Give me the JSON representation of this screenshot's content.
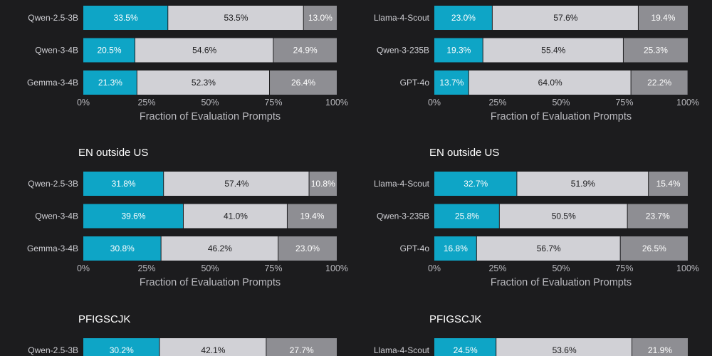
{
  "colors": {
    "background": "#1c1c1e",
    "series": [
      "#0ea5c6",
      "#d1d1d6",
      "#8e8e93"
    ],
    "label_on_series": [
      "#ffffff",
      "#1c1c1e",
      "#ffffff"
    ]
  },
  "chart_data": [
    {
      "type": "bar",
      "stacked": true,
      "orientation": "horizontal",
      "title": "",
      "categories": [
        "Qwen-2.5-3B",
        "Qwen-3-4B",
        "Gemma-3-4B"
      ],
      "series": [
        {
          "values": [
            33.5,
            20.5,
            21.3
          ]
        },
        {
          "values": [
            53.5,
            54.6,
            52.3
          ]
        },
        {
          "values": [
            13.0,
            24.9,
            26.4
          ]
        }
      ],
      "xlabel": "Fraction of Evaluation Prompts",
      "xlim": [
        0,
        100
      ],
      "xticks": [
        "0%",
        "25%",
        "50%",
        "75%",
        "100%"
      ]
    },
    {
      "type": "bar",
      "stacked": true,
      "orientation": "horizontal",
      "title": "",
      "categories": [
        "Llama-4-Scout",
        "Qwen-3-235B",
        "GPT-4o"
      ],
      "series": [
        {
          "values": [
            23.0,
            19.3,
            13.7
          ]
        },
        {
          "values": [
            57.6,
            55.4,
            64.0
          ]
        },
        {
          "values": [
            19.4,
            25.3,
            22.2
          ]
        }
      ],
      "xlabel": "Fraction of Evaluation Prompts",
      "xlim": [
        0,
        100
      ],
      "xticks": [
        "0%",
        "25%",
        "50%",
        "75%",
        "100%"
      ]
    },
    {
      "type": "bar",
      "stacked": true,
      "orientation": "horizontal",
      "title": "EN outside US",
      "categories": [
        "Qwen-2.5-3B",
        "Qwen-3-4B",
        "Gemma-3-4B"
      ],
      "series": [
        {
          "values": [
            31.8,
            39.6,
            30.8
          ]
        },
        {
          "values": [
            57.4,
            41.0,
            46.2
          ]
        },
        {
          "values": [
            10.8,
            19.4,
            23.0
          ]
        }
      ],
      "xlabel": "Fraction of Evaluation Prompts",
      "xlim": [
        0,
        100
      ],
      "xticks": [
        "0%",
        "25%",
        "50%",
        "75%",
        "100%"
      ]
    },
    {
      "type": "bar",
      "stacked": true,
      "orientation": "horizontal",
      "title": "EN outside US",
      "categories": [
        "Llama-4-Scout",
        "Qwen-3-235B",
        "GPT-4o"
      ],
      "series": [
        {
          "values": [
            32.7,
            25.8,
            16.8
          ]
        },
        {
          "values": [
            51.9,
            50.5,
            56.7
          ]
        },
        {
          "values": [
            15.4,
            23.7,
            26.5
          ]
        }
      ],
      "xlabel": "Fraction of Evaluation Prompts",
      "xlim": [
        0,
        100
      ],
      "xticks": [
        "0%",
        "25%",
        "50%",
        "75%",
        "100%"
      ]
    },
    {
      "type": "bar",
      "stacked": true,
      "orientation": "horizontal",
      "title": "PFIGSCJK",
      "categories": [
        "Qwen-2.5-3B"
      ],
      "series": [
        {
          "values": [
            30.2
          ]
        },
        {
          "values": [
            42.1
          ]
        },
        {
          "values": [
            27.7
          ]
        }
      ],
      "xlim": [
        0,
        100
      ]
    },
    {
      "type": "bar",
      "stacked": true,
      "orientation": "horizontal",
      "title": "PFIGSCJK",
      "categories": [
        "Llama-4-Scout"
      ],
      "series": [
        {
          "values": [
            24.5
          ]
        },
        {
          "values": [
            53.6
          ]
        },
        {
          "values": [
            21.9
          ]
        }
      ],
      "xlim": [
        0,
        100
      ]
    }
  ]
}
